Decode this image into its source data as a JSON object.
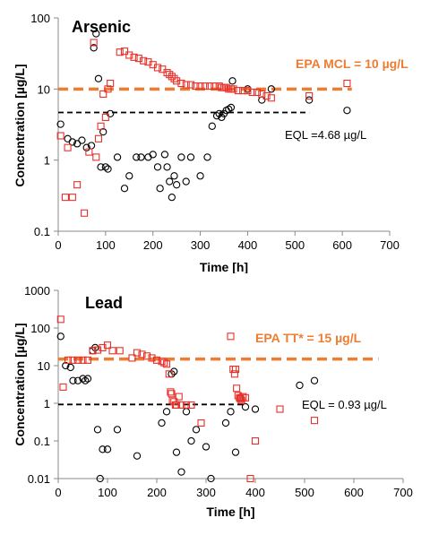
{
  "chart_data": [
    {
      "type": "scatter",
      "title": "Arsenic",
      "xlabel": "Time [h]",
      "ylabel": "Concentration [µg/L]",
      "xlim": [
        0,
        700
      ],
      "ylim": [
        0.1,
        100
      ],
      "y_scale": "log",
      "x_ticks": [
        "0",
        "100",
        "200",
        "300",
        "400",
        "500",
        "600",
        "700"
      ],
      "y_ticks": [
        "0.1",
        "1",
        "10",
        "100"
      ],
      "grid": false,
      "reference_lines": [
        {
          "label": "EPA MCL = 10 µg/L",
          "y": 10,
          "x_range": [
            0,
            620
          ],
          "color": "#ed7d31",
          "style": "dashed"
        },
        {
          "label": "EQL =4.68 µg/L",
          "y": 4.68,
          "x_range": [
            0,
            530
          ],
          "color": "#000000",
          "style": "dashed"
        }
      ],
      "series": [
        {
          "marker": "circle",
          "color": "#000000",
          "points": [
            [
              5,
              3.2
            ],
            [
              20,
              2.0
            ],
            [
              30,
              1.8
            ],
            [
              40,
              1.7
            ],
            [
              50,
              1.9
            ],
            [
              60,
              1.5
            ],
            [
              70,
              1.6
            ],
            [
              75,
              38
            ],
            [
              80,
              60
            ],
            [
              85,
              14
            ],
            [
              90,
              0.8
            ],
            [
              95,
              2.5
            ],
            [
              100,
              0.8
            ],
            [
              105,
              0.75
            ],
            [
              110,
              4.5
            ],
            [
              125,
              1.1
            ],
            [
              140,
              0.4
            ],
            [
              150,
              0.6
            ],
            [
              165,
              1.1
            ],
            [
              175,
              1.1
            ],
            [
              190,
              1.1
            ],
            [
              200,
              1.2
            ],
            [
              210,
              0.8
            ],
            [
              215,
              0.4
            ],
            [
              225,
              1.2
            ],
            [
              230,
              0.8
            ],
            [
              235,
              0.5
            ],
            [
              240,
              0.3
            ],
            [
              245,
              0.6
            ],
            [
              250,
              0.45
            ],
            [
              260,
              1.1
            ],
            [
              270,
              0.5
            ],
            [
              280,
              1.1
            ],
            [
              300,
              0.6
            ],
            [
              315,
              1.1
            ],
            [
              325,
              3.0
            ],
            [
              335,
              4.2
            ],
            [
              340,
              4.5
            ],
            [
              345,
              4.0
            ],
            [
              350,
              4.5
            ],
            [
              355,
              5.0
            ],
            [
              360,
              5.2
            ],
            [
              365,
              5.5
            ],
            [
              368,
              13
            ],
            [
              400,
              10
            ],
            [
              430,
              7
            ],
            [
              450,
              10
            ],
            [
              530,
              7
            ],
            [
              610,
              5
            ]
          ]
        },
        {
          "marker": "square",
          "color": "#e8312a",
          "points": [
            [
              5,
              2.2
            ],
            [
              15,
              0.3
            ],
            [
              20,
              1.5
            ],
            [
              30,
              0.3
            ],
            [
              40,
              0.45
            ],
            [
              55,
              0.18
            ],
            [
              65,
              1.3
            ],
            [
              75,
              45
            ],
            [
              80,
              1.1
            ],
            [
              85,
              2.0
            ],
            [
              90,
              3.0
            ],
            [
              95,
              8.5
            ],
            [
              100,
              4.0
            ],
            [
              105,
              10
            ],
            [
              110,
              12
            ],
            [
              130,
              33
            ],
            [
              140,
              34
            ],
            [
              150,
              30
            ],
            [
              160,
              28
            ],
            [
              170,
              27
            ],
            [
              180,
              25
            ],
            [
              190,
              24
            ],
            [
              200,
              22
            ],
            [
              210,
              20
            ],
            [
              220,
              19
            ],
            [
              230,
              17
            ],
            [
              235,
              16
            ],
            [
              240,
              15
            ],
            [
              245,
              14
            ],
            [
              250,
              13
            ],
            [
              260,
              12
            ],
            [
              270,
              11.5
            ],
            [
              280,
              11.5
            ],
            [
              290,
              11
            ],
            [
              300,
              11
            ],
            [
              310,
              11
            ],
            [
              320,
              11
            ],
            [
              330,
              11
            ],
            [
              340,
              11
            ],
            [
              345,
              10.5
            ],
            [
              350,
              10.5
            ],
            [
              355,
              10.5
            ],
            [
              360,
              10
            ],
            [
              365,
              10
            ],
            [
              370,
              10
            ],
            [
              380,
              9.5
            ],
            [
              390,
              9.5
            ],
            [
              400,
              9.5
            ],
            [
              410,
              9
            ],
            [
              420,
              9
            ],
            [
              430,
              8.5
            ],
            [
              440,
              8
            ],
            [
              450,
              7.5
            ],
            [
              530,
              8
            ],
            [
              610,
              12
            ]
          ]
        }
      ]
    },
    {
      "type": "scatter",
      "title": "Lead",
      "xlabel": "Time [h]",
      "ylabel": "Concentration [µg/L]",
      "xlim": [
        0,
        700
      ],
      "ylim": [
        0.01,
        1000
      ],
      "y_scale": "log",
      "x_ticks": [
        "0",
        "100",
        "200",
        "300",
        "400",
        "500",
        "600",
        "700"
      ],
      "y_ticks": [
        "0.01",
        "0.1",
        "1",
        "10",
        "100",
        "1000"
      ],
      "grid": false,
      "reference_lines": [
        {
          "label": "EPA TT* = 15 µg/L",
          "y": 15,
          "x_range": [
            0,
            650
          ],
          "color": "#ed7d31",
          "style": "dashed"
        },
        {
          "label": "EQL = 0.93 µg/L",
          "y": 0.93,
          "x_range": [
            0,
            380
          ],
          "color": "#000000",
          "style": "dashed"
        }
      ],
      "series": [
        {
          "marker": "circle",
          "color": "#000000",
          "points": [
            [
              5,
              60
            ],
            [
              15,
              10
            ],
            [
              25,
              9
            ],
            [
              30,
              4
            ],
            [
              40,
              4
            ],
            [
              50,
              4.5
            ],
            [
              55,
              4
            ],
            [
              60,
              4.5
            ],
            [
              70,
              25
            ],
            [
              75,
              30
            ],
            [
              80,
              0.2
            ],
            [
              85,
              0.01
            ],
            [
              90,
              0.06
            ],
            [
              100,
              0.06
            ],
            [
              120,
              0.2
            ],
            [
              160,
              0.04
            ],
            [
              210,
              0.3
            ],
            [
              220,
              0.6
            ],
            [
              230,
              6
            ],
            [
              235,
              7
            ],
            [
              240,
              0.05
            ],
            [
              250,
              0.015
            ],
            [
              260,
              0.6
            ],
            [
              270,
              0.1
            ],
            [
              280,
              0.2
            ],
            [
              300,
              0.07
            ],
            [
              310,
              0.01
            ],
            [
              340,
              0.3
            ],
            [
              350,
              0.6
            ],
            [
              360,
              0.05
            ],
            [
              370,
              1.4
            ],
            [
              380,
              0.8
            ],
            [
              400,
              0.7
            ],
            [
              490,
              3
            ],
            [
              520,
              4
            ]
          ]
        },
        {
          "marker": "square",
          "color": "#e8312a",
          "points": [
            [
              5,
              170
            ],
            [
              10,
              2.7
            ],
            [
              20,
              14
            ],
            [
              30,
              14
            ],
            [
              40,
              14
            ],
            [
              50,
              14
            ],
            [
              60,
              14
            ],
            [
              70,
              25
            ],
            [
              80,
              26
            ],
            [
              90,
              30
            ],
            [
              100,
              35
            ],
            [
              110,
              25
            ],
            [
              125,
              25
            ],
            [
              150,
              16
            ],
            [
              160,
              22
            ],
            [
              170,
              20
            ],
            [
              180,
              18
            ],
            [
              190,
              16
            ],
            [
              200,
              14
            ],
            [
              210,
              13
            ],
            [
              215,
              12
            ],
            [
              220,
              11
            ],
            [
              225,
              6
            ],
            [
              228,
              2
            ],
            [
              230,
              1.8
            ],
            [
              232,
              1.2
            ],
            [
              235,
              1.1
            ],
            [
              238,
              0.9
            ],
            [
              240,
              0.9
            ],
            [
              245,
              1.5
            ],
            [
              250,
              0.9
            ],
            [
              260,
              0.9
            ],
            [
              270,
              0.9
            ],
            [
              290,
              0.3
            ],
            [
              350,
              60
            ],
            [
              355,
              8
            ],
            [
              358,
              6
            ],
            [
              360,
              8
            ],
            [
              362,
              2.5
            ],
            [
              365,
              1.6
            ],
            [
              368,
              1.4
            ],
            [
              370,
              1.3
            ],
            [
              372,
              1.2
            ],
            [
              375,
              1.5
            ],
            [
              380,
              1.4
            ],
            [
              390,
              0.01
            ],
            [
              400,
              0.1
            ],
            [
              450,
              0.7
            ],
            [
              520,
              0.35
            ]
          ]
        }
      ]
    }
  ]
}
